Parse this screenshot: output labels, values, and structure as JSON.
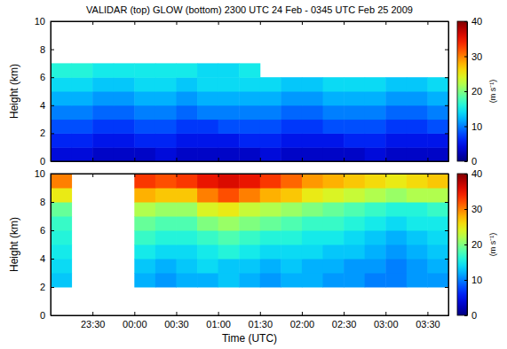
{
  "chart_data": [
    {
      "type": "heatmap",
      "title": "VALIDAR (top) GLOW (bottom) 2300 UTC 24 Feb - 0345 UTC Feb 25 2009",
      "ylabel": "Height (km)",
      "tick_labels": "y",
      "xlim": [
        23,
        27.75
      ],
      "xticks": [
        23.5,
        24,
        24.5,
        25,
        25.5,
        26,
        26.5,
        27,
        27.5
      ],
      "ylim": [
        0,
        10
      ],
      "yticks": [
        0,
        2,
        4,
        6,
        8,
        10
      ],
      "x_edges": [
        23,
        23.25,
        23.5,
        23.75,
        24,
        24.25,
        24.5,
        24.75,
        25,
        25.25,
        25.5,
        25.75,
        26,
        26.25,
        26.5,
        26.75,
        27,
        27.25,
        27.5,
        27.75
      ],
      "y_edges": [
        0,
        1,
        2,
        3,
        4,
        5,
        6,
        7,
        8,
        9,
        10
      ],
      "values": [
        [
          4,
          4,
          3,
          3,
          3,
          4,
          3,
          3,
          3,
          3,
          4,
          3,
          3,
          3,
          3,
          4,
          3,
          3,
          3
        ],
        [
          6,
          6,
          5,
          5,
          6,
          6,
          5,
          5,
          5,
          6,
          6,
          5,
          5,
          5,
          6,
          6,
          5,
          5,
          5
        ],
        [
          8,
          8,
          7,
          7,
          8,
          8,
          7,
          7,
          8,
          8,
          8,
          7,
          7,
          8,
          8,
          8,
          7,
          7,
          8
        ],
        [
          10,
          10,
          9,
          9,
          10,
          10,
          9,
          10,
          10,
          10,
          10,
          9,
          9,
          10,
          10,
          10,
          9,
          9,
          10
        ],
        [
          12,
          12,
          11,
          11,
          12,
          12,
          11,
          12,
          12,
          12,
          12,
          11,
          11,
          12,
          12,
          12,
          11,
          11,
          12
        ],
        [
          14,
          14,
          13,
          13,
          14,
          14,
          13,
          14,
          14,
          14,
          14,
          13,
          13,
          14,
          14,
          14,
          13,
          13,
          14
        ],
        [
          16,
          16,
          15,
          15,
          15,
          15,
          15,
          14,
          14,
          15,
          null,
          null,
          null,
          null,
          null,
          null,
          null,
          null,
          null
        ],
        [
          null,
          null,
          null,
          null,
          null,
          null,
          null,
          null,
          null,
          null,
          null,
          null,
          null,
          null,
          null,
          null,
          null,
          null,
          null
        ],
        [
          null,
          null,
          null,
          null,
          null,
          null,
          null,
          null,
          null,
          null,
          null,
          null,
          null,
          null,
          null,
          null,
          null,
          null,
          null
        ],
        [
          null,
          null,
          null,
          null,
          null,
          null,
          null,
          null,
          null,
          null,
          null,
          null,
          null,
          null,
          null,
          null,
          null,
          null,
          null
        ]
      ],
      "colorbar": {
        "range": [
          0,
          40
        ],
        "ticks": [
          0,
          10,
          20,
          30,
          40
        ],
        "label": "(m s⁻¹)"
      }
    },
    {
      "type": "heatmap",
      "ylabel": "Height (km)",
      "xlabel": "Time (UTC)",
      "xlim": [
        23,
        27.75
      ],
      "xticks": [
        {
          "value": 23.5,
          "label": "23:30"
        },
        {
          "value": 24,
          "label": "00:00"
        },
        {
          "value": 24.5,
          "label": "00:30"
        },
        {
          "value": 25,
          "label": "01:00"
        },
        {
          "value": 25.5,
          "label": "01:30"
        },
        {
          "value": 26,
          "label": "02:00"
        },
        {
          "value": 26.5,
          "label": "02:30"
        },
        {
          "value": 27,
          "label": "03:00"
        },
        {
          "value": 27.5,
          "label": "03:30"
        }
      ],
      "ylim": [
        0,
        10
      ],
      "yticks": [
        0,
        2,
        4,
        6,
        8,
        10
      ],
      "x_edges": [
        23,
        23.25,
        23.5,
        23.75,
        24,
        24.25,
        24.5,
        24.75,
        25,
        25.25,
        25.5,
        25.75,
        26,
        26.25,
        26.5,
        26.75,
        27,
        27.25,
        27.5,
        27.75
      ],
      "y_edges": [
        0,
        1,
        2,
        3,
        4,
        5,
        6,
        7,
        8,
        9,
        10
      ],
      "values": [
        [
          null,
          null,
          null,
          null,
          null,
          null,
          null,
          null,
          null,
          null,
          null,
          null,
          null,
          null,
          null,
          null,
          null,
          null,
          null
        ],
        [
          null,
          null,
          null,
          null,
          null,
          null,
          null,
          null,
          null,
          null,
          null,
          null,
          null,
          null,
          null,
          null,
          null,
          null,
          null
        ],
        [
          13,
          null,
          null,
          null,
          12,
          11,
          12,
          12,
          13,
          12,
          11,
          12,
          12,
          11,
          11,
          10,
          10,
          11,
          11
        ],
        [
          14,
          null,
          null,
          null,
          13,
          12,
          13,
          14,
          13,
          13,
          12,
          13,
          12,
          12,
          11,
          11,
          10,
          11,
          12
        ],
        [
          15,
          null,
          null,
          null,
          15,
          14,
          14,
          15,
          16,
          15,
          14,
          14,
          14,
          13,
          13,
          12,
          11,
          12,
          13
        ],
        [
          16,
          null,
          null,
          null,
          17,
          16,
          16,
          17,
          18,
          17,
          16,
          16,
          15,
          15,
          14,
          13,
          12,
          13,
          14
        ],
        [
          17,
          null,
          null,
          null,
          19,
          18,
          18,
          20,
          21,
          20,
          19,
          18,
          17,
          17,
          16,
          15,
          14,
          15,
          15
        ],
        [
          19,
          null,
          null,
          null,
          22,
          21,
          21,
          24,
          25,
          23,
          22,
          21,
          20,
          19,
          18,
          17,
          16,
          16,
          17
        ],
        [
          25,
          null,
          null,
          null,
          28,
          27,
          27,
          30,
          32,
          30,
          28,
          27,
          25,
          24,
          23,
          22,
          21,
          22,
          22
        ],
        [
          30,
          null,
          null,
          null,
          33,
          32,
          33,
          35,
          36,
          35,
          33,
          31,
          29,
          28,
          27,
          26,
          25,
          26,
          27
        ]
      ],
      "colorbar": {
        "range": [
          0,
          40
        ],
        "ticks": [
          0,
          10,
          20,
          30,
          40
        ],
        "label": "(m s⁻¹)"
      }
    }
  ]
}
